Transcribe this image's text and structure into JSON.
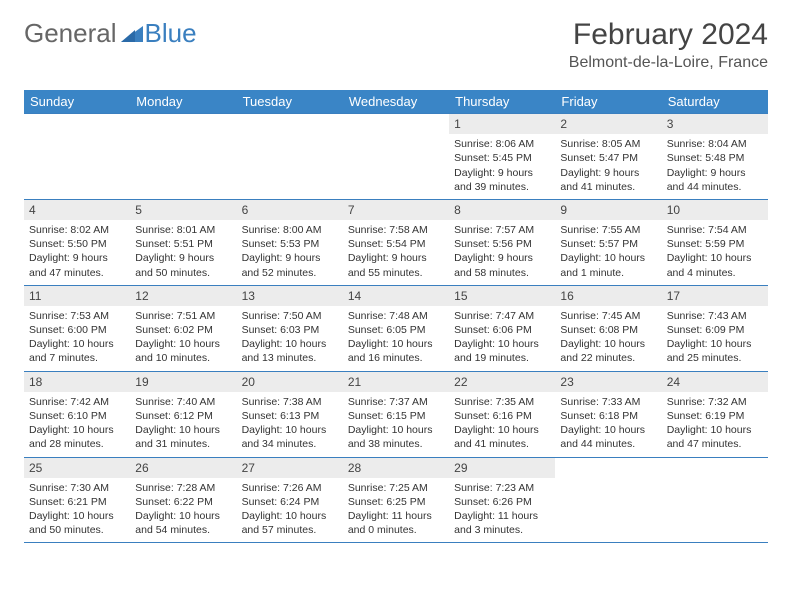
{
  "logo": {
    "text_general": "General",
    "text_blue": "Blue"
  },
  "title": "February 2024",
  "location": "Belmont-de-la-Loire, France",
  "colors": {
    "header_bg": "#3a85c6",
    "header_text": "#ffffff",
    "daynum_bg": "#ececec",
    "border": "#3a7fbf",
    "logo_blue": "#3a7fbf",
    "text": "#333333"
  },
  "day_names": [
    "Sunday",
    "Monday",
    "Tuesday",
    "Wednesday",
    "Thursday",
    "Friday",
    "Saturday"
  ],
  "weeks": [
    [
      null,
      null,
      null,
      null,
      {
        "n": "1",
        "sr": "Sunrise: 8:06 AM",
        "ss": "Sunset: 5:45 PM",
        "d1": "Daylight: 9 hours",
        "d2": "and 39 minutes."
      },
      {
        "n": "2",
        "sr": "Sunrise: 8:05 AM",
        "ss": "Sunset: 5:47 PM",
        "d1": "Daylight: 9 hours",
        "d2": "and 41 minutes."
      },
      {
        "n": "3",
        "sr": "Sunrise: 8:04 AM",
        "ss": "Sunset: 5:48 PM",
        "d1": "Daylight: 9 hours",
        "d2": "and 44 minutes."
      }
    ],
    [
      {
        "n": "4",
        "sr": "Sunrise: 8:02 AM",
        "ss": "Sunset: 5:50 PM",
        "d1": "Daylight: 9 hours",
        "d2": "and 47 minutes."
      },
      {
        "n": "5",
        "sr": "Sunrise: 8:01 AM",
        "ss": "Sunset: 5:51 PM",
        "d1": "Daylight: 9 hours",
        "d2": "and 50 minutes."
      },
      {
        "n": "6",
        "sr": "Sunrise: 8:00 AM",
        "ss": "Sunset: 5:53 PM",
        "d1": "Daylight: 9 hours",
        "d2": "and 52 minutes."
      },
      {
        "n": "7",
        "sr": "Sunrise: 7:58 AM",
        "ss": "Sunset: 5:54 PM",
        "d1": "Daylight: 9 hours",
        "d2": "and 55 minutes."
      },
      {
        "n": "8",
        "sr": "Sunrise: 7:57 AM",
        "ss": "Sunset: 5:56 PM",
        "d1": "Daylight: 9 hours",
        "d2": "and 58 minutes."
      },
      {
        "n": "9",
        "sr": "Sunrise: 7:55 AM",
        "ss": "Sunset: 5:57 PM",
        "d1": "Daylight: 10 hours",
        "d2": "and 1 minute."
      },
      {
        "n": "10",
        "sr": "Sunrise: 7:54 AM",
        "ss": "Sunset: 5:59 PM",
        "d1": "Daylight: 10 hours",
        "d2": "and 4 minutes."
      }
    ],
    [
      {
        "n": "11",
        "sr": "Sunrise: 7:53 AM",
        "ss": "Sunset: 6:00 PM",
        "d1": "Daylight: 10 hours",
        "d2": "and 7 minutes."
      },
      {
        "n": "12",
        "sr": "Sunrise: 7:51 AM",
        "ss": "Sunset: 6:02 PM",
        "d1": "Daylight: 10 hours",
        "d2": "and 10 minutes."
      },
      {
        "n": "13",
        "sr": "Sunrise: 7:50 AM",
        "ss": "Sunset: 6:03 PM",
        "d1": "Daylight: 10 hours",
        "d2": "and 13 minutes."
      },
      {
        "n": "14",
        "sr": "Sunrise: 7:48 AM",
        "ss": "Sunset: 6:05 PM",
        "d1": "Daylight: 10 hours",
        "d2": "and 16 minutes."
      },
      {
        "n": "15",
        "sr": "Sunrise: 7:47 AM",
        "ss": "Sunset: 6:06 PM",
        "d1": "Daylight: 10 hours",
        "d2": "and 19 minutes."
      },
      {
        "n": "16",
        "sr": "Sunrise: 7:45 AM",
        "ss": "Sunset: 6:08 PM",
        "d1": "Daylight: 10 hours",
        "d2": "and 22 minutes."
      },
      {
        "n": "17",
        "sr": "Sunrise: 7:43 AM",
        "ss": "Sunset: 6:09 PM",
        "d1": "Daylight: 10 hours",
        "d2": "and 25 minutes."
      }
    ],
    [
      {
        "n": "18",
        "sr": "Sunrise: 7:42 AM",
        "ss": "Sunset: 6:10 PM",
        "d1": "Daylight: 10 hours",
        "d2": "and 28 minutes."
      },
      {
        "n": "19",
        "sr": "Sunrise: 7:40 AM",
        "ss": "Sunset: 6:12 PM",
        "d1": "Daylight: 10 hours",
        "d2": "and 31 minutes."
      },
      {
        "n": "20",
        "sr": "Sunrise: 7:38 AM",
        "ss": "Sunset: 6:13 PM",
        "d1": "Daylight: 10 hours",
        "d2": "and 34 minutes."
      },
      {
        "n": "21",
        "sr": "Sunrise: 7:37 AM",
        "ss": "Sunset: 6:15 PM",
        "d1": "Daylight: 10 hours",
        "d2": "and 38 minutes."
      },
      {
        "n": "22",
        "sr": "Sunrise: 7:35 AM",
        "ss": "Sunset: 6:16 PM",
        "d1": "Daylight: 10 hours",
        "d2": "and 41 minutes."
      },
      {
        "n": "23",
        "sr": "Sunrise: 7:33 AM",
        "ss": "Sunset: 6:18 PM",
        "d1": "Daylight: 10 hours",
        "d2": "and 44 minutes."
      },
      {
        "n": "24",
        "sr": "Sunrise: 7:32 AM",
        "ss": "Sunset: 6:19 PM",
        "d1": "Daylight: 10 hours",
        "d2": "and 47 minutes."
      }
    ],
    [
      {
        "n": "25",
        "sr": "Sunrise: 7:30 AM",
        "ss": "Sunset: 6:21 PM",
        "d1": "Daylight: 10 hours",
        "d2": "and 50 minutes."
      },
      {
        "n": "26",
        "sr": "Sunrise: 7:28 AM",
        "ss": "Sunset: 6:22 PM",
        "d1": "Daylight: 10 hours",
        "d2": "and 54 minutes."
      },
      {
        "n": "27",
        "sr": "Sunrise: 7:26 AM",
        "ss": "Sunset: 6:24 PM",
        "d1": "Daylight: 10 hours",
        "d2": "and 57 minutes."
      },
      {
        "n": "28",
        "sr": "Sunrise: 7:25 AM",
        "ss": "Sunset: 6:25 PM",
        "d1": "Daylight: 11 hours",
        "d2": "and 0 minutes."
      },
      {
        "n": "29",
        "sr": "Sunrise: 7:23 AM",
        "ss": "Sunset: 6:26 PM",
        "d1": "Daylight: 11 hours",
        "d2": "and 3 minutes."
      },
      null,
      null
    ]
  ]
}
